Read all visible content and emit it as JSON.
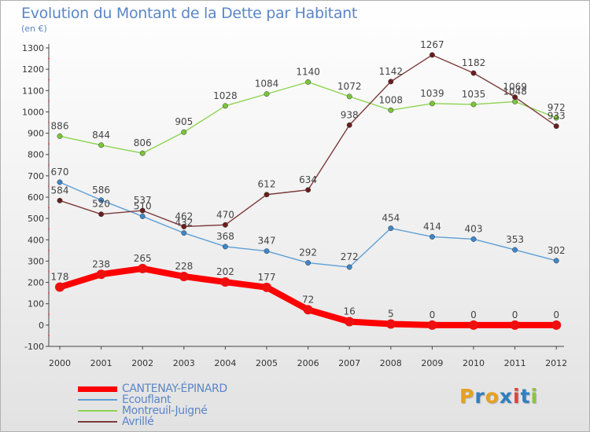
{
  "header": {
    "title": "Evolution du Montant de la Dette par Habitant",
    "subtitle": "(en €)"
  },
  "logo": {
    "text": "Proxiti",
    "letter_colors": [
      "#e8a020",
      "#2f7fc1",
      "#e8a020",
      "#2f7fc1",
      "#e04040",
      "#2f7fc1",
      "#8cc43c"
    ]
  },
  "chart_data": {
    "type": "line",
    "title": "Evolution du Montant de la Dette par Habitant",
    "subtitle": "(en €)",
    "xlabel": "",
    "ylabel": "",
    "x": [
      "2000",
      "2001",
      "2002",
      "2003",
      "2004",
      "2005",
      "2006",
      "2007",
      "2008",
      "2009",
      "2010",
      "2011",
      "2012"
    ],
    "ylim": [
      -100,
      1300
    ],
    "yticks": [
      -100,
      0,
      100,
      200,
      300,
      400,
      500,
      600,
      700,
      800,
      900,
      1000,
      1100,
      1200,
      1300
    ],
    "ytick_labels": [
      "-100",
      "0",
      "100",
      "200",
      "300",
      "400",
      "500",
      "600",
      "700",
      "800",
      "900",
      "1000",
      "1100",
      "1200",
      "1300"
    ],
    "grid": false,
    "legend_position": "bottom-left",
    "series": [
      {
        "name": "Montreuil-Juigné",
        "color": "#8ed450",
        "marker_color": "#7ac63a",
        "emphasis": false,
        "values": [
          886,
          844,
          806,
          905,
          1028,
          1084,
          1140,
          1072,
          1008,
          1039,
          1035,
          1048,
          972
        ],
        "value_labels": [
          "886",
          "844",
          "806",
          "905",
          "1028",
          "1084",
          "1140",
          "1072",
          "1008",
          "1039",
          "1035",
          "1048",
          "972"
        ]
      },
      {
        "name": "Ecouflant",
        "color": "#5e9fd6",
        "marker_color": "#3f86c8",
        "emphasis": false,
        "values": [
          670,
          586,
          510,
          432,
          368,
          347,
          292,
          272,
          454,
          414,
          403,
          353,
          302
        ],
        "value_labels": [
          "670",
          "586",
          "510",
          "432",
          "368",
          "347",
          "292",
          "272",
          "454",
          "414",
          "403",
          "353",
          "302"
        ]
      },
      {
        "name": "Avrillé",
        "color": "#7d3a3a",
        "marker_color": "#6a1e1e",
        "emphasis": false,
        "values": [
          584,
          520,
          537,
          462,
          470,
          612,
          634,
          938,
          1142,
          1267,
          1182,
          1069,
          933
        ],
        "value_labels": [
          "584",
          "520",
          "537",
          "462",
          "470",
          "612",
          "634",
          "938",
          "1142",
          "1267",
          "1182",
          "1069",
          "933"
        ]
      },
      {
        "name": "CANTENAY-ÉPINARD",
        "color": "#ff0000",
        "marker_color": "#ee1010",
        "emphasis": true,
        "values": [
          178,
          238,
          265,
          228,
          202,
          177,
          72,
          16,
          5,
          0,
          0,
          0,
          0
        ],
        "value_labels": [
          "178",
          "238",
          "265",
          "228",
          "202",
          "177",
          "72",
          "16",
          "5",
          "0",
          "0",
          "0",
          "0"
        ]
      }
    ],
    "legend_order": [
      "CANTENAY-ÉPINARD",
      "Ecouflant",
      "Montreuil-Juigné",
      "Avrillé"
    ]
  }
}
